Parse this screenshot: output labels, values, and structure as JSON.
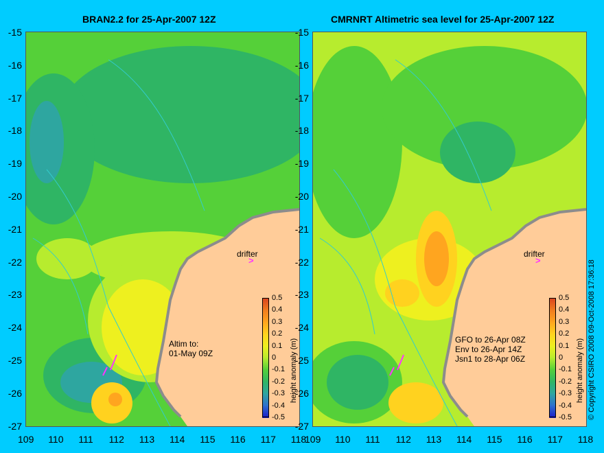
{
  "panels": [
    {
      "title": "BRAN2.2 for 25-Apr-2007 12Z",
      "annotations": {
        "drifter": "drifter",
        "altim_lines": [
          "Altim to:",
          "01-May 09Z"
        ]
      }
    },
    {
      "title": "CMRNRT Altimetric sea level  for 25-Apr-2007 12Z",
      "annotations": {
        "drifter": "drifter",
        "altim_lines": [
          "GFO to 26-Apr 08Z",
          "Env to 26-Apr 14Z",
          "Jsn1 to 28-Apr 06Z"
        ]
      }
    }
  ],
  "y_ticks": [
    "-15",
    "-16",
    "-17",
    "-18",
    "-19",
    "-20",
    "-21",
    "-22",
    "-23",
    "-24",
    "-25",
    "-26",
    "-27"
  ],
  "x_ticks": [
    "109",
    "110",
    "111",
    "112",
    "113",
    "114",
    "115",
    "116",
    "117",
    "118"
  ],
  "colorbar": {
    "title": "height anomaly (m)",
    "ticks": [
      "0.5",
      "0.4",
      "0.3",
      "0.2",
      "0.1",
      "0",
      "-0.1",
      "-0.2",
      "-0.3",
      "-0.4",
      "-0.5"
    ],
    "colors": [
      "#d9431f",
      "#f07b1f",
      "#ffa51f",
      "#ffd21f",
      "#eef01f",
      "#b7ec2e",
      "#55d039",
      "#2fb564",
      "#2ea6a0",
      "#2e6ed0",
      "#1a1ac8"
    ]
  },
  "copyright": "© Copyright CSIRO 2008   09-Oct-2008 17:36:18",
  "colors": {
    "background": "#00ccff",
    "land": "#ffcc99",
    "coast": "#8c8c8c",
    "drifter": "#ff33ff"
  }
}
